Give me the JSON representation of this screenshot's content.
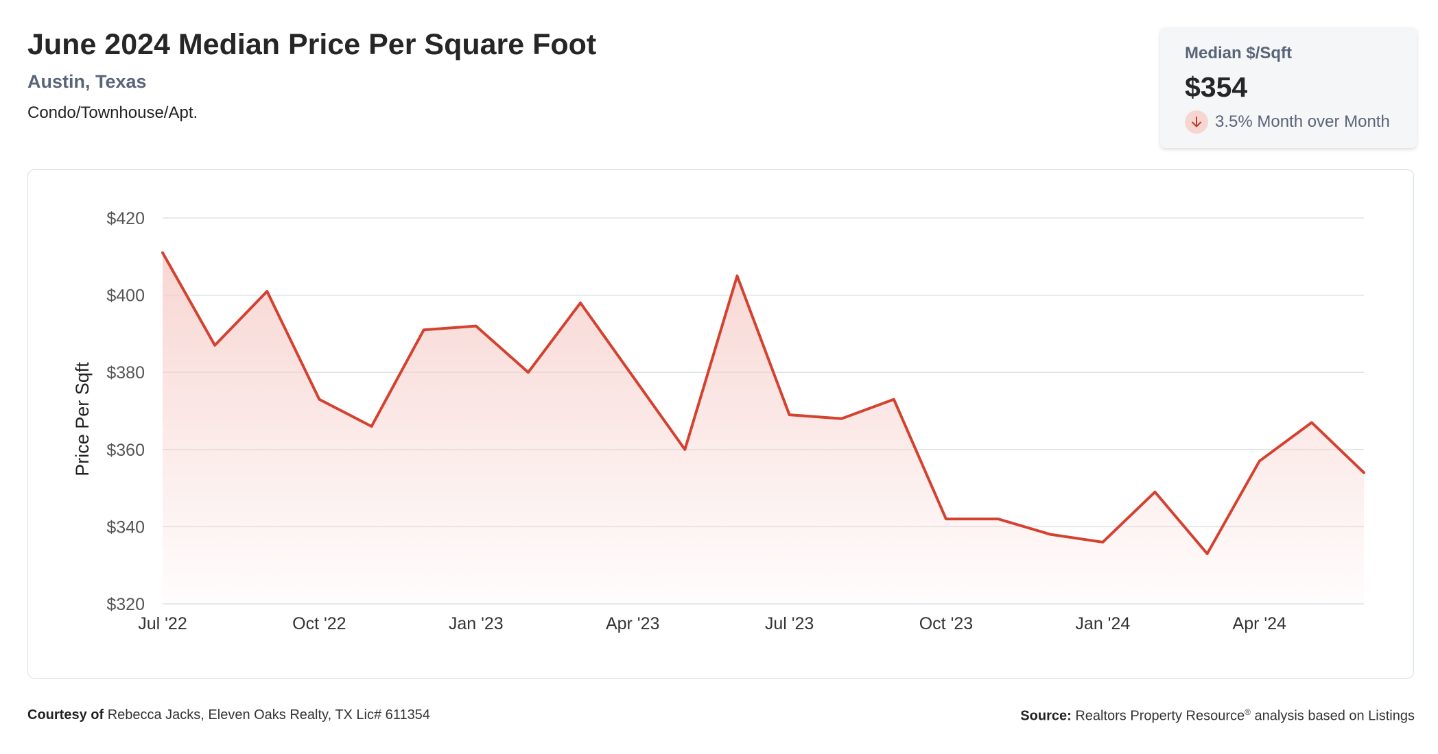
{
  "header": {
    "title": "June 2024 Median Price Per Square Foot",
    "location": "Austin, Texas",
    "property_type": "Condo/Townhouse/Apt."
  },
  "kpi": {
    "label": "Median $/Sqft",
    "value": "$354",
    "change_text": "3.5% Month over Month",
    "direction_icon": "arrow-down-icon"
  },
  "footer": {
    "courtesy_label": "Courtesy of",
    "courtesy_text": "Rebecca Jacks, Eleven Oaks Realty, TX Lic# 611354",
    "source_label": "Source:",
    "source_text_pre": "Realtors Property Resource",
    "source_registered": "®",
    "source_text_post": " analysis based on Listings"
  },
  "colors": {
    "line": "#d4412f",
    "fill_top": "#f6cfcb",
    "grid": "#dde3e4",
    "axis_text": "#555555"
  },
  "chart_data": {
    "type": "area",
    "title": "",
    "ylabel": "Price Per Sqft",
    "xlabel": "",
    "ylim": [
      320,
      420
    ],
    "yticks": [
      320,
      340,
      360,
      380,
      400,
      420
    ],
    "ytick_labels": [
      "$320",
      "$340",
      "$360",
      "$380",
      "$400",
      "$420"
    ],
    "x_tick_labels": [
      "Jul '22",
      "Oct '22",
      "Jan '23",
      "Apr '23",
      "Jul '23",
      "Oct '23",
      "Jan '24",
      "Apr '24"
    ],
    "x_tick_indices": [
      0,
      3,
      6,
      9,
      12,
      15,
      18,
      21
    ],
    "grid": true,
    "series": [
      {
        "x": [
          "2022-07",
          "2022-08",
          "2022-09",
          "2022-10",
          "2022-11",
          "2022-12",
          "2023-01",
          "2023-02",
          "2023-03",
          "2023-04",
          "2023-05",
          "2023-06",
          "2023-07",
          "2023-08",
          "2023-09",
          "2023-10",
          "2023-11",
          "2023-12",
          "2024-01",
          "2024-02",
          "2024-03",
          "2024-04",
          "2024-05",
          "2024-06"
        ],
        "values": [
          411,
          387,
          401,
          373,
          366,
          391,
          392,
          380,
          398,
          379,
          360,
          405,
          369,
          368,
          373,
          342,
          342,
          338,
          336,
          349,
          333,
          357,
          367,
          354
        ]
      }
    ]
  }
}
